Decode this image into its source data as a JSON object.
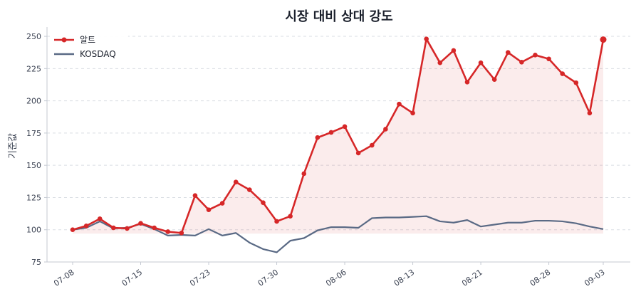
{
  "chart_data": {
    "type": "line",
    "title": "시장 대비 상대 강도",
    "xlabel": "",
    "ylabel": "기준값",
    "ylim": [
      75,
      255
    ],
    "yticks": [
      75,
      100,
      125,
      150,
      175,
      200,
      225,
      250
    ],
    "xtick_labels": [
      "07-08",
      "07-15",
      "07-23",
      "07-30",
      "08-06",
      "08-13",
      "08-21",
      "08-28",
      "09-03"
    ],
    "xtick_positions": [
      0,
      5,
      10,
      15,
      20,
      25,
      30,
      35,
      39
    ],
    "grid": true,
    "legend_position": "top-left",
    "series": [
      {
        "name": "알트",
        "color": "#d62728",
        "marker": "circle",
        "fill_to_baseline": 97,
        "values": [
          100,
          103,
          108.5,
          101.5,
          101,
          105,
          101.5,
          98.5,
          97.5,
          126.5,
          115.5,
          120.5,
          137,
          131,
          121,
          106.5,
          110.5,
          143.5,
          171.5,
          175.5,
          180,
          159.5,
          165.5,
          178,
          197.5,
          190.5,
          248,
          229.5,
          239,
          214.5,
          229.5,
          216.5,
          237.5,
          230,
          235.5,
          232.5,
          221,
          214,
          190.5,
          247.5
        ]
      },
      {
        "name": "KOSDAQ",
        "color": "#5a6a85",
        "marker": "none",
        "values": [
          100,
          101.5,
          106.5,
          101,
          101.5,
          104.5,
          100.5,
          95.5,
          96,
          95.5,
          100.5,
          95.5,
          97.5,
          90,
          85,
          82.5,
          91.5,
          93.5,
          99.5,
          102,
          102,
          101.5,
          109,
          109.5,
          109.5,
          110,
          110.5,
          106.5,
          105.5,
          107.5,
          102.5,
          104,
          105.5,
          105.5,
          107,
          107,
          106.5,
          105,
          102.5,
          100.5
        ]
      }
    ]
  }
}
